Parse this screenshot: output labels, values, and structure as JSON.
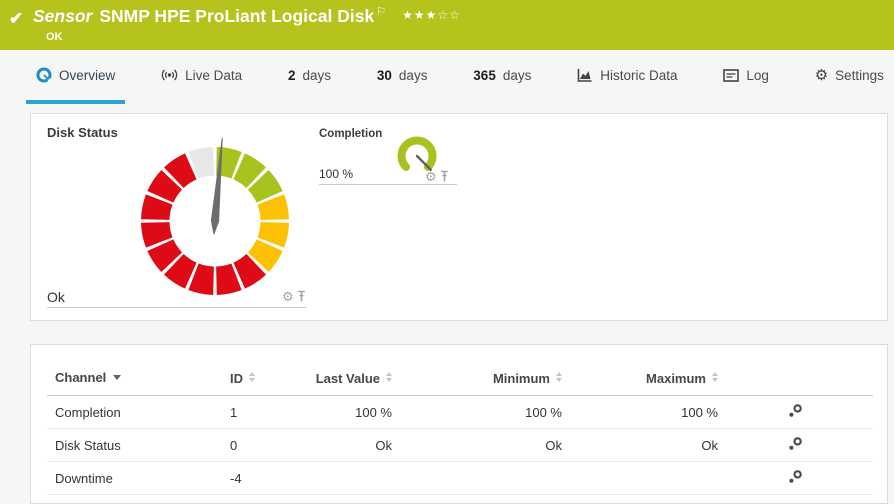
{
  "colors": {
    "header_green": "#b5c31c",
    "accent_blue": "#2aa3d5",
    "gauge_green": "#a7c31d",
    "gauge_yellow": "#fcc103",
    "gauge_red": "#de0b17",
    "gauge_gray": "#e7e7e7",
    "needle_gray": "#6d6d6d"
  },
  "header": {
    "kind_label": "Sensor",
    "title": "SNMP HPE ProLiant Logical Disk",
    "status_text": "OK",
    "flag_icon": "⚐",
    "rating": {
      "filled": 3,
      "total": 5
    }
  },
  "tabs": [
    {
      "id": "overview",
      "icon": "gauge",
      "label": "Overview",
      "active": true
    },
    {
      "id": "live-data",
      "icon": "broadcast",
      "label": "Live Data",
      "active": false
    },
    {
      "id": "2-days",
      "bold": "2",
      "label": "days",
      "active": false
    },
    {
      "id": "30-days",
      "bold": "30",
      "label": "days",
      "active": false
    },
    {
      "id": "365-days",
      "bold": "365",
      "label": "days",
      "active": false
    },
    {
      "id": "historic-data",
      "icon": "chart",
      "label": "Historic Data",
      "active": false
    },
    {
      "id": "log",
      "icon": "log",
      "label": "Log",
      "active": false
    },
    {
      "id": "settings",
      "icon": "gear",
      "label": "Settings",
      "active": false
    }
  ],
  "chart_data": [
    {
      "type": "gauge",
      "title": "Disk Status",
      "value": "Ok",
      "needle_angle_deg": 5,
      "segment_sweep_deg": 22.5,
      "segments": [
        {
          "color": "#a7c31d",
          "count": 3
        },
        {
          "color": "#fcc103",
          "count": 3
        },
        {
          "color": "#de0b17",
          "count": 9
        },
        {
          "color": "#e7e7e7",
          "count": 1
        }
      ]
    },
    {
      "type": "gauge",
      "title": "Completion",
      "value": "100 %",
      "arc_start_deg": -135,
      "arc_end_deg": 135,
      "needle_angle_deg": 135,
      "arc_color": "#a7c31d"
    }
  ],
  "table": {
    "headers": [
      {
        "label": "Channel",
        "sort": "desc"
      },
      {
        "label": "ID",
        "sort": "both"
      },
      {
        "label": "Last Value",
        "sort": "both"
      },
      {
        "label": "Minimum",
        "sort": "both"
      },
      {
        "label": "Maximum",
        "sort": "both"
      }
    ],
    "rows": [
      {
        "channel": "Completion",
        "id": "1",
        "last": "100 %",
        "min": "100 %",
        "max": "100 %"
      },
      {
        "channel": "Disk Status",
        "id": "0",
        "last": "Ok",
        "min": "Ok",
        "max": "Ok"
      },
      {
        "channel": "Downtime",
        "id": "-4",
        "last": "",
        "min": "",
        "max": ""
      }
    ]
  }
}
